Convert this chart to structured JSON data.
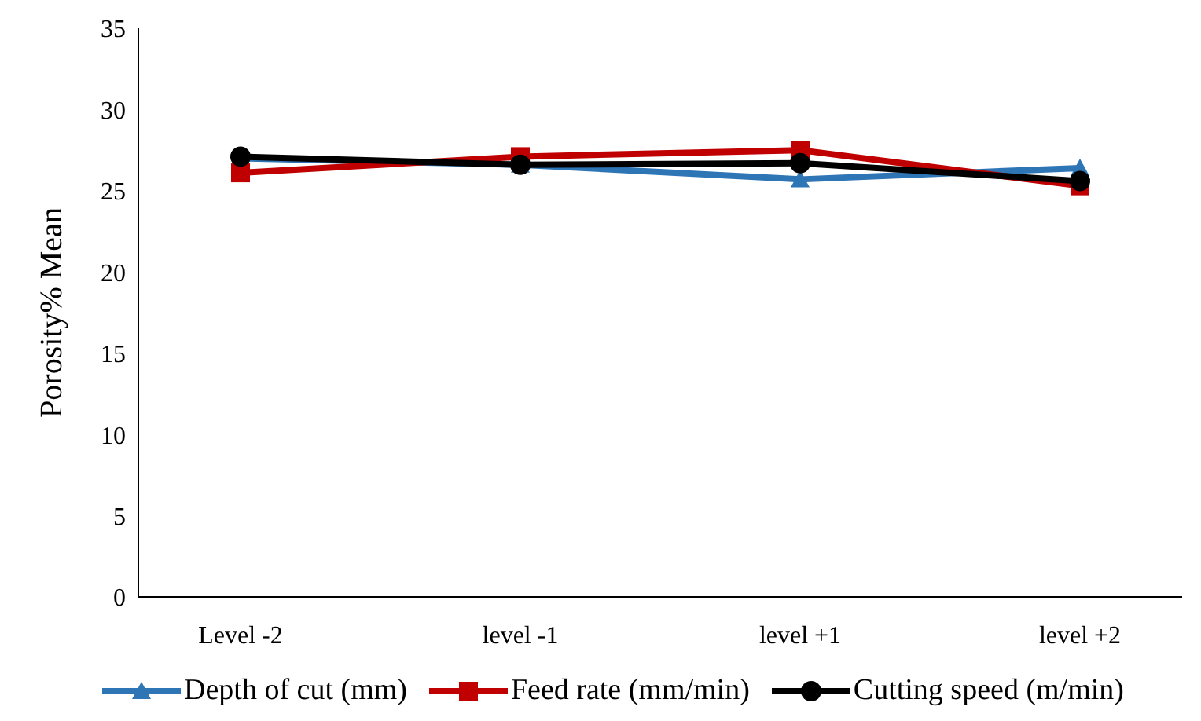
{
  "chart_data": {
    "type": "line",
    "ylabel": "Porosity% Mean",
    "categories": [
      "Level -2",
      "level -1",
      "level +1",
      "level +2"
    ],
    "series": [
      {
        "name": "Depth of cut (mm)",
        "color": "#2e75b6",
        "marker": "triangle",
        "values": [
          27.0,
          26.6,
          25.7,
          26.4
        ]
      },
      {
        "name": "Feed rate (mm/min)",
        "color": "#c00000",
        "marker": "square",
        "values": [
          26.1,
          27.1,
          27.5,
          25.3
        ]
      },
      {
        "name": "Cutting speed (m/min)",
        "color": "#000000",
        "marker": "circle",
        "values": [
          27.1,
          26.6,
          26.7,
          25.6
        ]
      }
    ],
    "ylim": [
      0,
      35
    ],
    "yticks": [
      0,
      5,
      10,
      15,
      20,
      25,
      30,
      35
    ],
    "grid": false,
    "legend": "bottom"
  }
}
